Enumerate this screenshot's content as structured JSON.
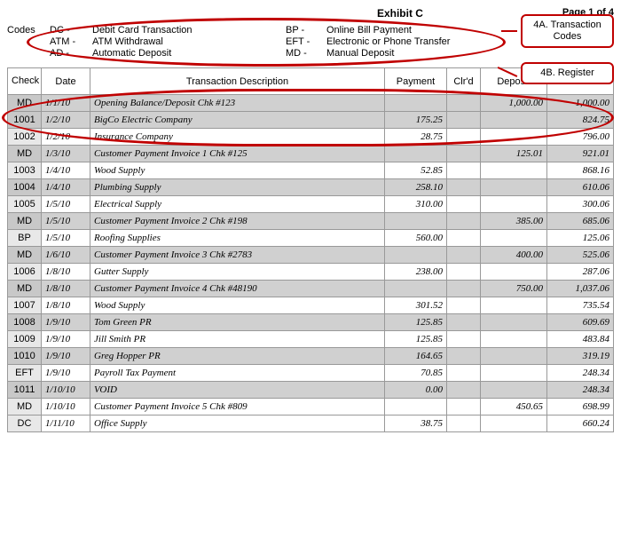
{
  "header": {
    "exhibit": "Exhibit C",
    "page": "Page 1 of 4"
  },
  "codes": {
    "label": "Codes",
    "left": [
      {
        "abbr": "DC -",
        "desc": "Debit Card Transaction"
      },
      {
        "abbr": "ATM -",
        "desc": "ATM Withdrawal"
      },
      {
        "abbr": "AD -",
        "desc": "Automatic Deposit"
      }
    ],
    "right": [
      {
        "abbr": "BP -",
        "desc": "Online Bill Payment"
      },
      {
        "abbr": "EFT -",
        "desc": "Electronic or Phone Transfer"
      },
      {
        "abbr": "MD -",
        "desc": "Manual Deposit"
      }
    ]
  },
  "callouts": {
    "a": "4A.  Transaction Codes",
    "b": "4B.   Register"
  },
  "columns": {
    "code": "Check /Code",
    "date": "Date",
    "desc": "Transaction Description",
    "pay": "Payment",
    "clr": "Clr'd",
    "dep": "Deposit",
    "bal": "Balance"
  },
  "rows": [
    {
      "shaded": true,
      "code": "MD",
      "date": "1/1/10",
      "desc": "Opening  Balance/Deposit Chk #123",
      "pay": "",
      "clr": "",
      "dep": "1,000.00",
      "bal": "1,000.00"
    },
    {
      "shaded": true,
      "code": "1001",
      "date": "1/2/10",
      "desc": "BigCo Electric Company",
      "pay": "175.25",
      "clr": "",
      "dep": "",
      "bal": "824.75"
    },
    {
      "shaded": false,
      "code": "1002",
      "date": "1/2/10",
      "desc": "Insurance Company",
      "pay": "28.75",
      "clr": "",
      "dep": "",
      "bal": "796.00"
    },
    {
      "shaded": true,
      "code": "MD",
      "date": "1/3/10",
      "desc": "Customer Payment  Invoice 1 Chk #125",
      "pay": "",
      "clr": "",
      "dep": "125.01",
      "bal": "921.01"
    },
    {
      "shaded": false,
      "code": "1003",
      "date": "1/4/10",
      "desc": "Wood Supply",
      "pay": "52.85",
      "clr": "",
      "dep": "",
      "bal": "868.16"
    },
    {
      "shaded": true,
      "code": "1004",
      "date": "1/4/10",
      "desc": "Plumbing Supply",
      "pay": "258.10",
      "clr": "",
      "dep": "",
      "bal": "610.06"
    },
    {
      "shaded": false,
      "code": "1005",
      "date": "1/5/10",
      "desc": "Electrical Supply",
      "pay": "310.00",
      "clr": "",
      "dep": "",
      "bal": "300.06"
    },
    {
      "shaded": true,
      "code": "MD",
      "date": "1/5/10",
      "desc": "Customer Payment  Invoice 2 Chk #198",
      "pay": "",
      "clr": "",
      "dep": "385.00",
      "bal": "685.06"
    },
    {
      "shaded": false,
      "code": "BP",
      "date": "1/5/10",
      "desc": "Roofing Supplies",
      "pay": "560.00",
      "clr": "",
      "dep": "",
      "bal": "125.06"
    },
    {
      "shaded": true,
      "code": "MD",
      "date": "1/6/10",
      "desc": "Customer Payment  Invoice 3 Chk #2783",
      "pay": "",
      "clr": "",
      "dep": "400.00",
      "bal": "525.06"
    },
    {
      "shaded": false,
      "code": "1006",
      "date": "1/8/10",
      "desc": "Gutter Supply",
      "pay": "238.00",
      "clr": "",
      "dep": "",
      "bal": "287.06"
    },
    {
      "shaded": true,
      "code": "MD",
      "date": "1/8/10",
      "desc": "Customer Payment  Invoice 4 Chk #48190",
      "pay": "",
      "clr": "",
      "dep": "750.00",
      "bal": "1,037.06"
    },
    {
      "shaded": false,
      "code": "1007",
      "date": "1/8/10",
      "desc": "Wood Supply",
      "pay": "301.52",
      "clr": "",
      "dep": "",
      "bal": "735.54"
    },
    {
      "shaded": true,
      "code": "1008",
      "date": "1/9/10",
      "desc": "Tom Green PR",
      "pay": "125.85",
      "clr": "",
      "dep": "",
      "bal": "609.69"
    },
    {
      "shaded": false,
      "code": "1009",
      "date": "1/9/10",
      "desc": "Jill Smith PR",
      "pay": "125.85",
      "clr": "",
      "dep": "",
      "bal": "483.84"
    },
    {
      "shaded": true,
      "code": "1010",
      "date": "1/9/10",
      "desc": "Greg Hopper PR",
      "pay": "164.65",
      "clr": "",
      "dep": "",
      "bal": "319.19"
    },
    {
      "shaded": false,
      "code": "EFT",
      "date": "1/9/10",
      "desc": "Payroll Tax Payment",
      "pay": "70.85",
      "clr": "",
      "dep": "",
      "bal": "248.34"
    },
    {
      "shaded": true,
      "code": "1011",
      "date": "1/10/10",
      "desc": "VOID",
      "pay": "0.00",
      "clr": "",
      "dep": "",
      "bal": "248.34"
    },
    {
      "shaded": false,
      "code": "MD",
      "date": "1/10/10",
      "desc": "Customer Payment  Invoice 5 Chk #809",
      "pay": "",
      "clr": "",
      "dep": "450.65",
      "bal": "698.99"
    },
    {
      "shaded": false,
      "code": "DC",
      "date": "1/11/10",
      "desc": "Office Supply",
      "pay": "38.75",
      "clr": "",
      "dep": "",
      "bal": "660.24"
    }
  ],
  "style": {
    "accent": "#c00000",
    "shade": "#d0d0d0",
    "border": "#999999"
  }
}
